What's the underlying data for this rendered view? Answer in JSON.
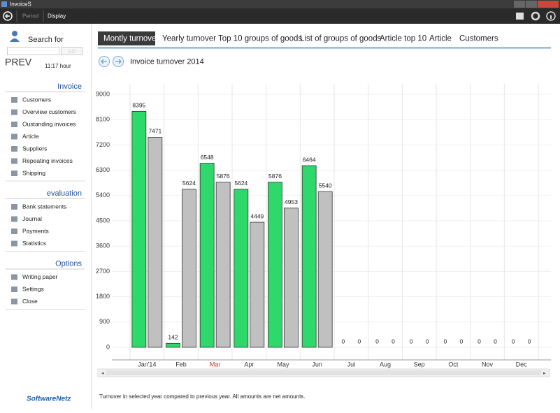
{
  "window": {
    "title": "InvoiceS",
    "toolbar": [
      "Period",
      "Display"
    ]
  },
  "sidebar": {
    "search_label": "Search for",
    "search_button": "GO",
    "prev": "PREV",
    "time": "11:17 hour",
    "sections": [
      {
        "title": "Invoice",
        "items": [
          "Customers",
          "Overview customers",
          "Oustanding invoices",
          "Article",
          "Suppliers",
          "Repeating invoices",
          "Shipping"
        ]
      },
      {
        "title": "evaluation",
        "items": [
          "Bank statements",
          "Journal",
          "Payments",
          "Statistics"
        ]
      },
      {
        "title": "Options",
        "items": [
          "Writing paper",
          "Settings",
          "Close"
        ]
      }
    ],
    "logo": "SoftwareNetz"
  },
  "tabs": [
    "Montly turnover",
    "Yearly turnover",
    "Top 10 groups of goods",
    "List of groups of goods",
    "Article top 10",
    "Article",
    "Customers"
  ],
  "heading": "Invoice turnover 2014",
  "chart_data": {
    "type": "bar",
    "categories": [
      "Jan'14",
      "Feb",
      "Mar",
      "Apr",
      "May",
      "Jun",
      "Jul",
      "Aug",
      "Sep",
      "Oct",
      "Nov",
      "Dec"
    ],
    "series": [
      {
        "color": "#2ed86a",
        "values": [
          8395,
          142,
          6548,
          5624,
          5876,
          6464,
          0,
          0,
          0,
          0,
          0,
          0
        ]
      },
      {
        "color": "#c0c0c0",
        "values": [
          7471,
          5624,
          5876,
          4449,
          4953,
          5540,
          0,
          0,
          0,
          0,
          0,
          0
        ]
      }
    ],
    "ylim": [
      0,
      9000
    ],
    "yticks": [
      0,
      900,
      1800,
      2700,
      3600,
      4500,
      5400,
      6300,
      7200,
      8100,
      9000
    ],
    "grid": true
  },
  "footer": "Turnover in selected year compared to previous year. All amounts are net amounts."
}
